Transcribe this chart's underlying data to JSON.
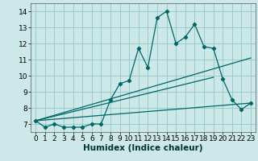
{
  "xlabel": "Humidex (Indice chaleur)",
  "bg_color": "#cce8e8",
  "grid_color": "#99cccc",
  "line_color": "#006666",
  "xlim": [
    -0.5,
    23.5
  ],
  "ylim": [
    6.5,
    14.5
  ],
  "xticks": [
    0,
    1,
    2,
    3,
    4,
    5,
    6,
    7,
    8,
    9,
    10,
    11,
    12,
    13,
    14,
    15,
    16,
    17,
    18,
    19,
    20,
    21,
    22,
    23
  ],
  "yticks": [
    7,
    8,
    9,
    10,
    11,
    12,
    13,
    14
  ],
  "line1_x": [
    0,
    1,
    2,
    3,
    4,
    5,
    6,
    7,
    8,
    9,
    10,
    11,
    12,
    13,
    14,
    15,
    16,
    17,
    18,
    19,
    20,
    21,
    22,
    23
  ],
  "line1_y": [
    7.2,
    6.8,
    7.0,
    6.8,
    6.8,
    6.8,
    7.0,
    7.0,
    8.5,
    9.5,
    9.7,
    11.7,
    10.5,
    13.6,
    14.0,
    12.0,
    12.4,
    13.2,
    11.8,
    11.7,
    9.8,
    8.5,
    7.9,
    8.3
  ],
  "line2_x": [
    0,
    23
  ],
  "line2_y": [
    7.2,
    11.1
  ],
  "line3_x": [
    0,
    23
  ],
  "line3_y": [
    7.2,
    8.3
  ],
  "line4_x": [
    0,
    19
  ],
  "line4_y": [
    7.2,
    9.9
  ],
  "fontsize_xlabel": 7.5,
  "fontsize_ticks": 6.5
}
